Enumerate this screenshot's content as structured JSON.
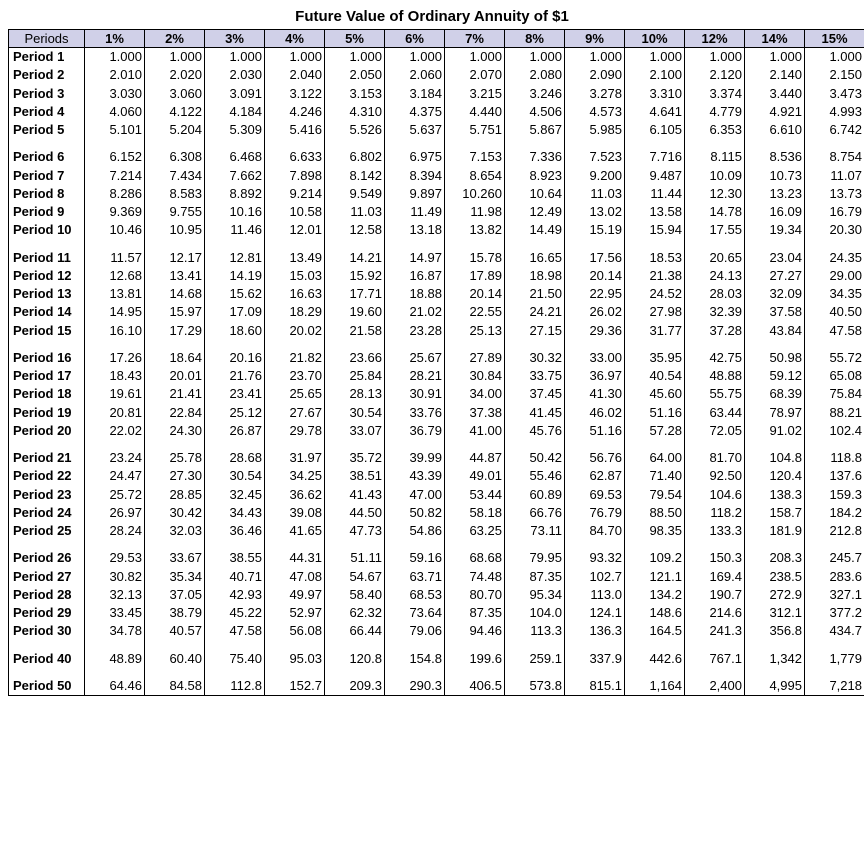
{
  "title": "Future Value of Ordinary Annuity of $1",
  "headers": [
    "Periods",
    "1%",
    "2%",
    "3%",
    "4%",
    "5%",
    "6%",
    "7%",
    "8%",
    "9%",
    "10%",
    "12%",
    "14%",
    "15%"
  ],
  "groups": [
    {
      "rows": [
        {
          "label": "Period 1",
          "vals": [
            "1.000",
            "1.000",
            "1.000",
            "1.000",
            "1.000",
            "1.000",
            "1.000",
            "1.000",
            "1.000",
            "1.000",
            "1.000",
            "1.000",
            "1.000"
          ]
        },
        {
          "label": "Period 2",
          "vals": [
            "2.010",
            "2.020",
            "2.030",
            "2.040",
            "2.050",
            "2.060",
            "2.070",
            "2.080",
            "2.090",
            "2.100",
            "2.120",
            "2.140",
            "2.150"
          ]
        },
        {
          "label": "Period 3",
          "vals": [
            "3.030",
            "3.060",
            "3.091",
            "3.122",
            "3.153",
            "3.184",
            "3.215",
            "3.246",
            "3.278",
            "3.310",
            "3.374",
            "3.440",
            "3.473"
          ]
        },
        {
          "label": "Period 4",
          "vals": [
            "4.060",
            "4.122",
            "4.184",
            "4.246",
            "4.310",
            "4.375",
            "4.440",
            "4.506",
            "4.573",
            "4.641",
            "4.779",
            "4.921",
            "4.993"
          ]
        },
        {
          "label": "Period 5",
          "vals": [
            "5.101",
            "5.204",
            "5.309",
            "5.416",
            "5.526",
            "5.637",
            "5.751",
            "5.867",
            "5.985",
            "6.105",
            "6.353",
            "6.610",
            "6.742"
          ]
        }
      ]
    },
    {
      "rows": [
        {
          "label": "Period 6",
          "vals": [
            "6.152",
            "6.308",
            "6.468",
            "6.633",
            "6.802",
            "6.975",
            "7.153",
            "7.336",
            "7.523",
            "7.716",
            "8.115",
            "8.536",
            "8.754"
          ]
        },
        {
          "label": "Period 7",
          "vals": [
            "7.214",
            "7.434",
            "7.662",
            "7.898",
            "8.142",
            "8.394",
            "8.654",
            "8.923",
            "9.200",
            "9.487",
            "10.09",
            "10.73",
            "11.07"
          ]
        },
        {
          "label": "Period 8",
          "vals": [
            "8.286",
            "8.583",
            "8.892",
            "9.214",
            "9.549",
            "9.897",
            "10.260",
            "10.64",
            "11.03",
            "11.44",
            "12.30",
            "13.23",
            "13.73"
          ]
        },
        {
          "label": "Period 9",
          "vals": [
            "9.369",
            "9.755",
            "10.16",
            "10.58",
            "11.03",
            "11.49",
            "11.98",
            "12.49",
            "13.02",
            "13.58",
            "14.78",
            "16.09",
            "16.79"
          ]
        },
        {
          "label": "Period 10",
          "vals": [
            "10.46",
            "10.95",
            "11.46",
            "12.01",
            "12.58",
            "13.18",
            "13.82",
            "14.49",
            "15.19",
            "15.94",
            "17.55",
            "19.34",
            "20.30"
          ]
        }
      ]
    },
    {
      "rows": [
        {
          "label": "Period 11",
          "vals": [
            "11.57",
            "12.17",
            "12.81",
            "13.49",
            "14.21",
            "14.97",
            "15.78",
            "16.65",
            "17.56",
            "18.53",
            "20.65",
            "23.04",
            "24.35"
          ]
        },
        {
          "label": "Period 12",
          "vals": [
            "12.68",
            "13.41",
            "14.19",
            "15.03",
            "15.92",
            "16.87",
            "17.89",
            "18.98",
            "20.14",
            "21.38",
            "24.13",
            "27.27",
            "29.00"
          ]
        },
        {
          "label": "Period 13",
          "vals": [
            "13.81",
            "14.68",
            "15.62",
            "16.63",
            "17.71",
            "18.88",
            "20.14",
            "21.50",
            "22.95",
            "24.52",
            "28.03",
            "32.09",
            "34.35"
          ]
        },
        {
          "label": "Period 14",
          "vals": [
            "14.95",
            "15.97",
            "17.09",
            "18.29",
            "19.60",
            "21.02",
            "22.55",
            "24.21",
            "26.02",
            "27.98",
            "32.39",
            "37.58",
            "40.50"
          ]
        },
        {
          "label": "Period 15",
          "vals": [
            "16.10",
            "17.29",
            "18.60",
            "20.02",
            "21.58",
            "23.28",
            "25.13",
            "27.15",
            "29.36",
            "31.77",
            "37.28",
            "43.84",
            "47.58"
          ]
        }
      ]
    },
    {
      "rows": [
        {
          "label": "Period 16",
          "vals": [
            "17.26",
            "18.64",
            "20.16",
            "21.82",
            "23.66",
            "25.67",
            "27.89",
            "30.32",
            "33.00",
            "35.95",
            "42.75",
            "50.98",
            "55.72"
          ]
        },
        {
          "label": "Period 17",
          "vals": [
            "18.43",
            "20.01",
            "21.76",
            "23.70",
            "25.84",
            "28.21",
            "30.84",
            "33.75",
            "36.97",
            "40.54",
            "48.88",
            "59.12",
            "65.08"
          ]
        },
        {
          "label": "Period 18",
          "vals": [
            "19.61",
            "21.41",
            "23.41",
            "25.65",
            "28.13",
            "30.91",
            "34.00",
            "37.45",
            "41.30",
            "45.60",
            "55.75",
            "68.39",
            "75.84"
          ]
        },
        {
          "label": "Period 19",
          "vals": [
            "20.81",
            "22.84",
            "25.12",
            "27.67",
            "30.54",
            "33.76",
            "37.38",
            "41.45",
            "46.02",
            "51.16",
            "63.44",
            "78.97",
            "88.21"
          ]
        },
        {
          "label": "Period 20",
          "vals": [
            "22.02",
            "24.30",
            "26.87",
            "29.78",
            "33.07",
            "36.79",
            "41.00",
            "45.76",
            "51.16",
            "57.28",
            "72.05",
            "91.02",
            "102.4"
          ]
        }
      ]
    },
    {
      "rows": [
        {
          "label": "Period 21",
          "vals": [
            "23.24",
            "25.78",
            "28.68",
            "31.97",
            "35.72",
            "39.99",
            "44.87",
            "50.42",
            "56.76",
            "64.00",
            "81.70",
            "104.8",
            "118.8"
          ]
        },
        {
          "label": "Period 22",
          "vals": [
            "24.47",
            "27.30",
            "30.54",
            "34.25",
            "38.51",
            "43.39",
            "49.01",
            "55.46",
            "62.87",
            "71.40",
            "92.50",
            "120.4",
            "137.6"
          ]
        },
        {
          "label": "Period 23",
          "vals": [
            "25.72",
            "28.85",
            "32.45",
            "36.62",
            "41.43",
            "47.00",
            "53.44",
            "60.89",
            "69.53",
            "79.54",
            "104.6",
            "138.3",
            "159.3"
          ]
        },
        {
          "label": "Period 24",
          "vals": [
            "26.97",
            "30.42",
            "34.43",
            "39.08",
            "44.50",
            "50.82",
            "58.18",
            "66.76",
            "76.79",
            "88.50",
            "118.2",
            "158.7",
            "184.2"
          ]
        },
        {
          "label": "Period 25",
          "vals": [
            "28.24",
            "32.03",
            "36.46",
            "41.65",
            "47.73",
            "54.86",
            "63.25",
            "73.11",
            "84.70",
            "98.35",
            "133.3",
            "181.9",
            "212.8"
          ]
        }
      ]
    },
    {
      "rows": [
        {
          "label": "Period 26",
          "vals": [
            "29.53",
            "33.67",
            "38.55",
            "44.31",
            "51.11",
            "59.16",
            "68.68",
            "79.95",
            "93.32",
            "109.2",
            "150.3",
            "208.3",
            "245.7"
          ]
        },
        {
          "label": "Period 27",
          "vals": [
            "30.82",
            "35.34",
            "40.71",
            "47.08",
            "54.67",
            "63.71",
            "74.48",
            "87.35",
            "102.7",
            "121.1",
            "169.4",
            "238.5",
            "283.6"
          ]
        },
        {
          "label": "Period 28",
          "vals": [
            "32.13",
            "37.05",
            "42.93",
            "49.97",
            "58.40",
            "68.53",
            "80.70",
            "95.34",
            "113.0",
            "134.2",
            "190.7",
            "272.9",
            "327.1"
          ]
        },
        {
          "label": "Period 29",
          "vals": [
            "33.45",
            "38.79",
            "45.22",
            "52.97",
            "62.32",
            "73.64",
            "87.35",
            "104.0",
            "124.1",
            "148.6",
            "214.6",
            "312.1",
            "377.2"
          ]
        },
        {
          "label": "Period 30",
          "vals": [
            "34.78",
            "40.57",
            "47.58",
            "56.08",
            "66.44",
            "79.06",
            "94.46",
            "113.3",
            "136.3",
            "164.5",
            "241.3",
            "356.8",
            "434.7"
          ]
        }
      ]
    },
    {
      "rows": [
        {
          "label": "Period 40",
          "vals": [
            "48.89",
            "60.40",
            "75.40",
            "95.03",
            "120.8",
            "154.8",
            "199.6",
            "259.1",
            "337.9",
            "442.6",
            "767.1",
            "1,342",
            "1,779"
          ]
        }
      ]
    },
    {
      "rows": [
        {
          "label": "Period 50",
          "vals": [
            "64.46",
            "84.58",
            "112.8",
            "152.7",
            "209.3",
            "290.3",
            "406.5",
            "573.8",
            "815.1",
            "1,164",
            "2,400",
            "4,995",
            "7,218"
          ]
        }
      ]
    }
  ]
}
